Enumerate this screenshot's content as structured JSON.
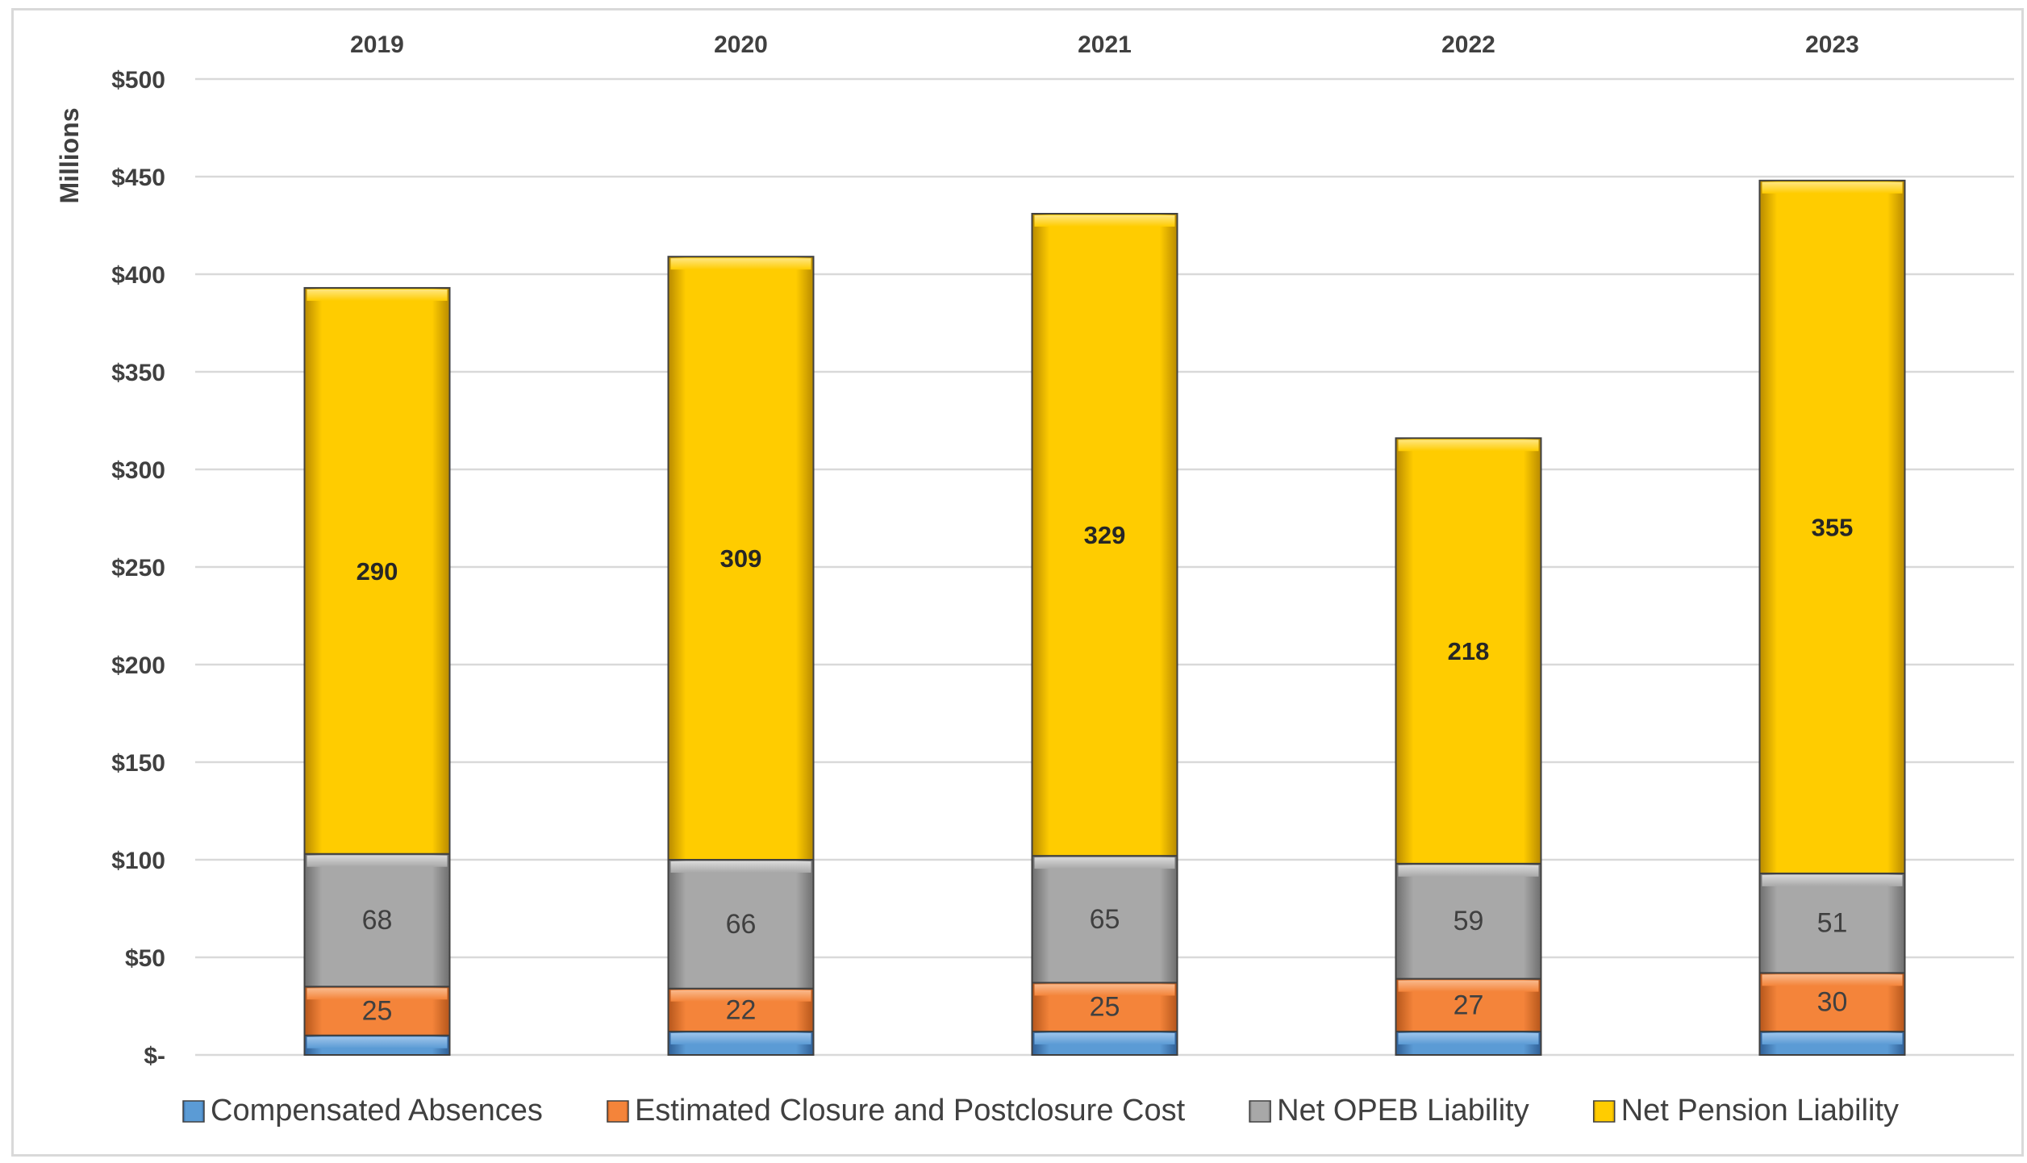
{
  "chart_data": {
    "type": "bar",
    "stacked": true,
    "title": "",
    "xlabel": "",
    "ylabel": "Millions",
    "categories": [
      "2019",
      "2020",
      "2021",
      "2022",
      "2023"
    ],
    "category_axis_position": "top",
    "ylim": [
      0,
      500
    ],
    "y_ticks": [
      0,
      50,
      100,
      150,
      200,
      250,
      300,
      350,
      400,
      450,
      500
    ],
    "y_tick_labels": [
      "$-",
      "$50",
      "$100",
      "$150",
      "$200",
      "$250",
      "$300",
      "$350",
      "$400",
      "$450",
      "$500"
    ],
    "grid": true,
    "legend_position": "bottom",
    "series": [
      {
        "name": "Compensated Absences",
        "color": "#4a86c8",
        "values": [
          10,
          12,
          12,
          12,
          12
        ],
        "labels": [
          "",
          "",
          "",
          "",
          ""
        ]
      },
      {
        "name": "Estimated Closure and Postclosure Cost",
        "color": "#ed7d31",
        "values": [
          25,
          22,
          25,
          27,
          30
        ],
        "labels": [
          "25",
          "22",
          "25",
          "27",
          "30"
        ]
      },
      {
        "name": "Net OPEB Liability",
        "color": "#a5a5a5",
        "values": [
          68,
          66,
          65,
          59,
          51
        ],
        "labels": [
          "68",
          "66",
          "65",
          "59",
          "51"
        ]
      },
      {
        "name": "Net Pension Liability",
        "color": "#ffc000",
        "values": [
          290,
          309,
          329,
          218,
          355
        ],
        "labels": [
          "290",
          "309",
          "329",
          "218",
          "355"
        ]
      }
    ]
  }
}
